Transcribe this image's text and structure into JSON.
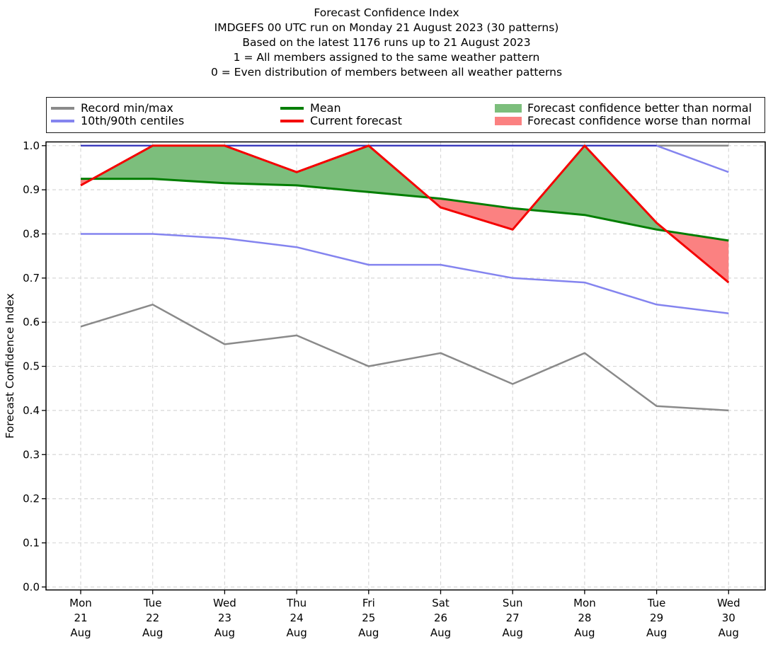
{
  "title": {
    "lines": [
      "Forecast Confidence Index",
      "IMDGEFS 00 UTC run on Monday 21 August 2023 (30 patterns)",
      "Based on the latest 1176 runs up to 21 August 2023",
      "1 = All members assigned to the same weather pattern",
      "0 = Even distribution of members between all weather patterns"
    ]
  },
  "legend": {
    "items": [
      {
        "label": "Record min/max",
        "type": "line",
        "color": "#8a8a8a"
      },
      {
        "label": "10th/90th centiles",
        "type": "line",
        "color": "#8484ef"
      },
      {
        "label": "Mean",
        "type": "line",
        "color": "#007e00"
      },
      {
        "label": "Current forecast",
        "type": "line",
        "color": "#f40000"
      },
      {
        "label": "Forecast confidence better than normal",
        "type": "patch",
        "color": "#7cbe7c"
      },
      {
        "label": "Forecast confidence worse than normal",
        "type": "patch",
        "color": "#fb8181"
      }
    ]
  },
  "chart_data": {
    "type": "line",
    "title": "Forecast Confidence Index",
    "ylabel": "Forecast Confidence Index",
    "xlabel": "",
    "ylim": [
      0.0,
      1.01
    ],
    "grid": true,
    "legend_position": "top",
    "y_ticks": [
      "0.0",
      "0.1",
      "0.2",
      "0.3",
      "0.4",
      "0.5",
      "0.6",
      "0.7",
      "0.8",
      "0.9",
      "1.0"
    ],
    "categories": [
      [
        "Mon",
        "21",
        "Aug"
      ],
      [
        "Tue",
        "22",
        "Aug"
      ],
      [
        "Wed",
        "23",
        "Aug"
      ],
      [
        "Thu",
        "24",
        "Aug"
      ],
      [
        "Fri",
        "25",
        "Aug"
      ],
      [
        "Sat",
        "26",
        "Aug"
      ],
      [
        "Sun",
        "27",
        "Aug"
      ],
      [
        "Mon",
        "28",
        "Aug"
      ],
      [
        "Tue",
        "29",
        "Aug"
      ],
      [
        "Wed",
        "30",
        "Aug"
      ]
    ],
    "series": [
      {
        "name": "Record max",
        "color": "#8a8a8a",
        "values": [
          1.0,
          1.0,
          1.0,
          1.0,
          1.0,
          1.0,
          1.0,
          1.0,
          1.0,
          1.0
        ]
      },
      {
        "name": "Record min",
        "color": "#8a8a8a",
        "values": [
          0.59,
          0.64,
          0.55,
          0.57,
          0.5,
          0.53,
          0.46,
          0.53,
          0.41,
          0.4
        ]
      },
      {
        "name": "90th centile",
        "color": "#8484ef",
        "values": [
          1.0,
          1.0,
          1.0,
          1.0,
          1.0,
          1.0,
          1.0,
          1.0,
          1.0,
          0.94
        ]
      },
      {
        "name": "10th centile",
        "color": "#8484ef",
        "values": [
          0.8,
          0.8,
          0.79,
          0.77,
          0.73,
          0.73,
          0.7,
          0.69,
          0.64,
          0.62
        ]
      },
      {
        "name": "Mean",
        "color": "#007e00",
        "values": [
          0.925,
          0.925,
          0.915,
          0.91,
          0.895,
          0.88,
          0.858,
          0.843,
          0.81,
          0.785
        ]
      },
      {
        "name": "Current forecast",
        "color": "#f40000",
        "values": [
          0.91,
          1.0,
          1.0,
          0.94,
          1.0,
          0.86,
          0.81,
          1.0,
          0.825,
          0.69
        ]
      }
    ],
    "fills": {
      "between": [
        "Current forecast",
        "Mean"
      ],
      "better_color": "#7cbe7c",
      "worse_color": "#fb8181",
      "better_label": "Forecast confidence better than normal",
      "worse_label": "Forecast confidence worse than normal"
    }
  }
}
